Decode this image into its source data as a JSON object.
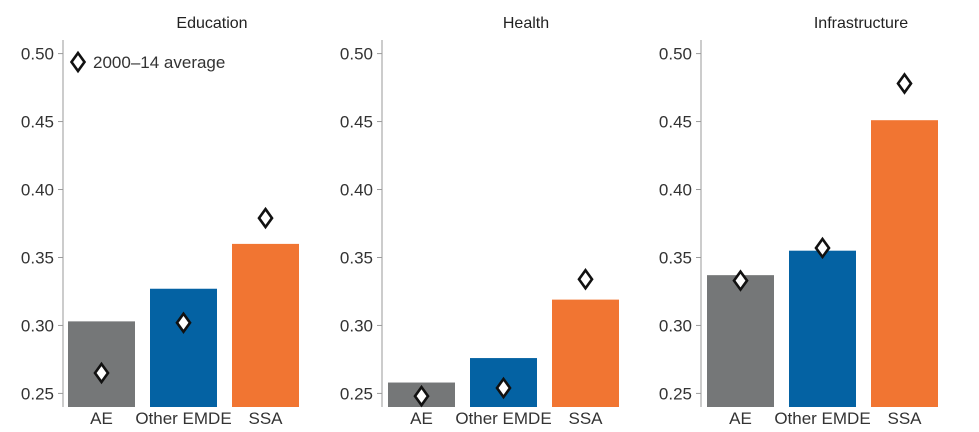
{
  "chart_data": [
    {
      "type": "bar",
      "title": "Education",
      "categories": [
        "AE",
        "Other EMDE",
        "SSA"
      ],
      "series": [
        {
          "values": [
            0.303,
            0.327,
            0.36
          ]
        },
        {
          "name": "2000–14 average",
          "values": [
            0.265,
            0.302,
            0.379
          ]
        }
      ],
      "ylim": [
        0.24,
        0.51
      ],
      "yticks": [
        "0.25",
        "0.30",
        "0.35",
        "0.40",
        "0.45",
        "0.50"
      ],
      "legend": "top-left"
    },
    {
      "type": "bar",
      "title": "Health",
      "categories": [
        "AE",
        "Other EMDE",
        "SSA"
      ],
      "series": [
        {
          "values": [
            0.258,
            0.276,
            0.319
          ]
        },
        {
          "name": "2000–14 average",
          "values": [
            0.248,
            0.254,
            0.334
          ]
        }
      ],
      "ylim": [
        0.24,
        0.51
      ],
      "yticks": [
        "0.25",
        "0.30",
        "0.35",
        "0.40",
        "0.45",
        "0.50"
      ]
    },
    {
      "type": "bar",
      "title": "Infrastructure",
      "categories": [
        "AE",
        "Other EMDE",
        "SSA"
      ],
      "series": [
        {
          "values": [
            0.337,
            0.355,
            0.451
          ]
        },
        {
          "name": "2000–14 average",
          "values": [
            0.333,
            0.357,
            0.478
          ]
        }
      ],
      "ylim": [
        0.24,
        0.51
      ],
      "yticks": [
        "0.25",
        "0.30",
        "0.35",
        "0.40",
        "0.45",
        "0.50"
      ]
    }
  ],
  "colors": {
    "AE": "#757778",
    "Other EMDE": "#0462a3",
    "SSA": "#f17532",
    "marker": "#111111",
    "axis": "#9a9a9a"
  },
  "legend": {
    "marker_label": "2000–14 average"
  }
}
